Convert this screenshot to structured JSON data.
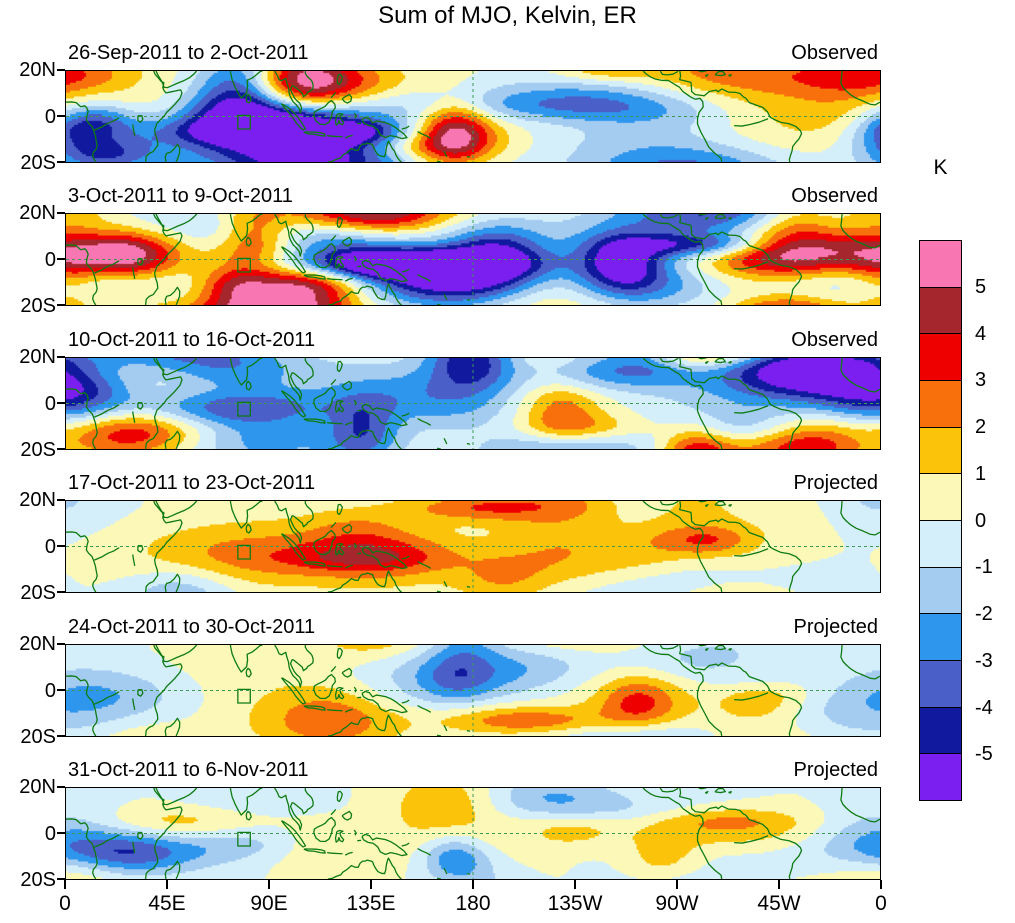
{
  "title": "Sum of MJO, Kelvin, ER",
  "panels": [
    {
      "period": "26-Sep-2011 to 2-Oct-2011",
      "status": "Observed"
    },
    {
      "period": "3-Oct-2011 to 9-Oct-2011",
      "status": "Observed"
    },
    {
      "period": "10-Oct-2011 to 16-Oct-2011",
      "status": "Observed"
    },
    {
      "period": "17-Oct-2011 to 23-Oct-2011",
      "status": "Projected"
    },
    {
      "period": "24-Oct-2011 to 30-Oct-2011",
      "status": "Projected"
    },
    {
      "period": "31-Oct-2011 to 6-Nov-2011",
      "status": "Projected"
    }
  ],
  "yaxis": {
    "ticks": [
      "20N",
      "0",
      "20S"
    ]
  },
  "xaxis": {
    "ticks": [
      "0",
      "45E",
      "90E",
      "135E",
      "180",
      "135W",
      "90W",
      "45W",
      "0"
    ]
  },
  "colorbar": {
    "unit": "K",
    "tick_labels": [
      "5",
      "4",
      "3",
      "2",
      "1",
      "0",
      "-1",
      "-2",
      "-3",
      "-4",
      "-5"
    ],
    "colors_top_to_bottom": [
      "#F877B2",
      "#A5262D",
      "#EE0000",
      "#F7700C",
      "#FCC30B",
      "#FBF8B8",
      "#D5EFFA",
      "#A4CBF0",
      "#2F96EE",
      "#4A5FC8",
      "#111A9E",
      "#7A1FEF"
    ]
  },
  "map": {
    "coastline_color": "#0E7B12",
    "gridline_color": "#3D9A52",
    "region_box_color": "#0E7B12",
    "region_box": {
      "lon": [
        76,
        81.5
      ],
      "lat": [
        -5.5,
        0.5
      ]
    }
  },
  "chart_data": {
    "type": "heatmap",
    "subtype": "filled-contour longitude-latitude tropical strip panels",
    "title": "Sum of MJO, Kelvin, ER",
    "unit": "K",
    "contour_levels": [
      -5,
      -4,
      -3,
      -2,
      -1,
      0,
      1,
      2,
      3,
      4,
      5
    ],
    "lon_range": [
      0,
      360
    ],
    "lat_range": [
      -20,
      20
    ],
    "lon_tick_labels": [
      "0",
      "45E",
      "90E",
      "135E",
      "180",
      "135W",
      "90W",
      "45W",
      "0"
    ],
    "lat_tick_labels": [
      "20N",
      "0",
      "20S"
    ],
    "panels": [
      {
        "period": "26-Sep-2011 to 2-Oct-2011",
        "status": "Observed",
        "anomaly_amplitude_K": 5
      },
      {
        "period": "3-Oct-2011 to 9-Oct-2011",
        "status": "Observed",
        "anomaly_amplitude_K": 5
      },
      {
        "period": "10-Oct-2011 to 16-Oct-2011",
        "status": "Observed",
        "anomaly_amplitude_K": 5
      },
      {
        "period": "17-Oct-2011 to 23-Oct-2011",
        "status": "Projected",
        "anomaly_amplitude_K": 2
      },
      {
        "period": "24-Oct-2011 to 30-Oct-2011",
        "status": "Projected",
        "anomaly_amplitude_K": 2
      },
      {
        "period": "31-Oct-2011 to 6-Nov-2011",
        "status": "Projected",
        "anomaly_amplitude_K": 2
      }
    ],
    "legend_position": "right",
    "gridlines": "dashed green line at equator and at 180 longitude",
    "overlays": "green coastlines and a small green region box near 78E just south of the equator",
    "notes": "Combined MJO + Kelvin + ER wave anomaly fields; observed weeks show strong anomalies up to about +/-5 K, projected weeks show weaker anomalies within about +/-2 K."
  }
}
